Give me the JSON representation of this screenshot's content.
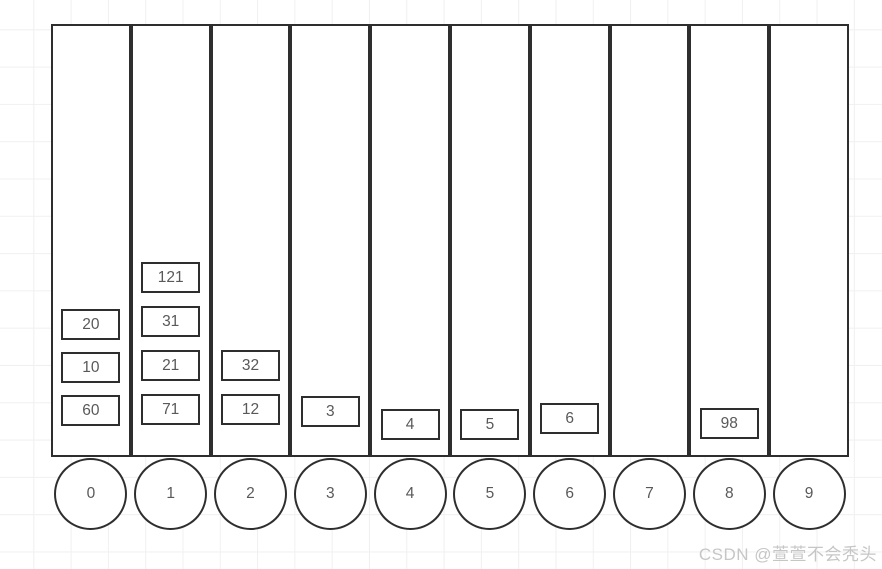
{
  "diagram": {
    "title_semantic": "radix-bucket-sort-buckets",
    "buckets": [
      {
        "label": "0",
        "items": [
          "20",
          "10",
          "60"
        ]
      },
      {
        "label": "1",
        "items": [
          "121",
          "31",
          "21",
          "71"
        ]
      },
      {
        "label": "2",
        "items": [
          "32",
          "12"
        ]
      },
      {
        "label": "3",
        "items": [
          "3"
        ]
      },
      {
        "label": "4",
        "items": [
          "4"
        ]
      },
      {
        "label": "5",
        "items": [
          "5"
        ]
      },
      {
        "label": "6",
        "items": [
          "6"
        ]
      },
      {
        "label": "7",
        "items": []
      },
      {
        "label": "8",
        "items": [
          "98"
        ]
      },
      {
        "label": "9",
        "items": []
      }
    ],
    "colors": {
      "stroke": "#2e2e2e",
      "text": "#595959",
      "grid": "#f0f0f0",
      "background": "#ffffff",
      "watermark": "#c6c6c6"
    }
  },
  "watermark": {
    "text": "CSDN @萱萱不会秃头"
  }
}
